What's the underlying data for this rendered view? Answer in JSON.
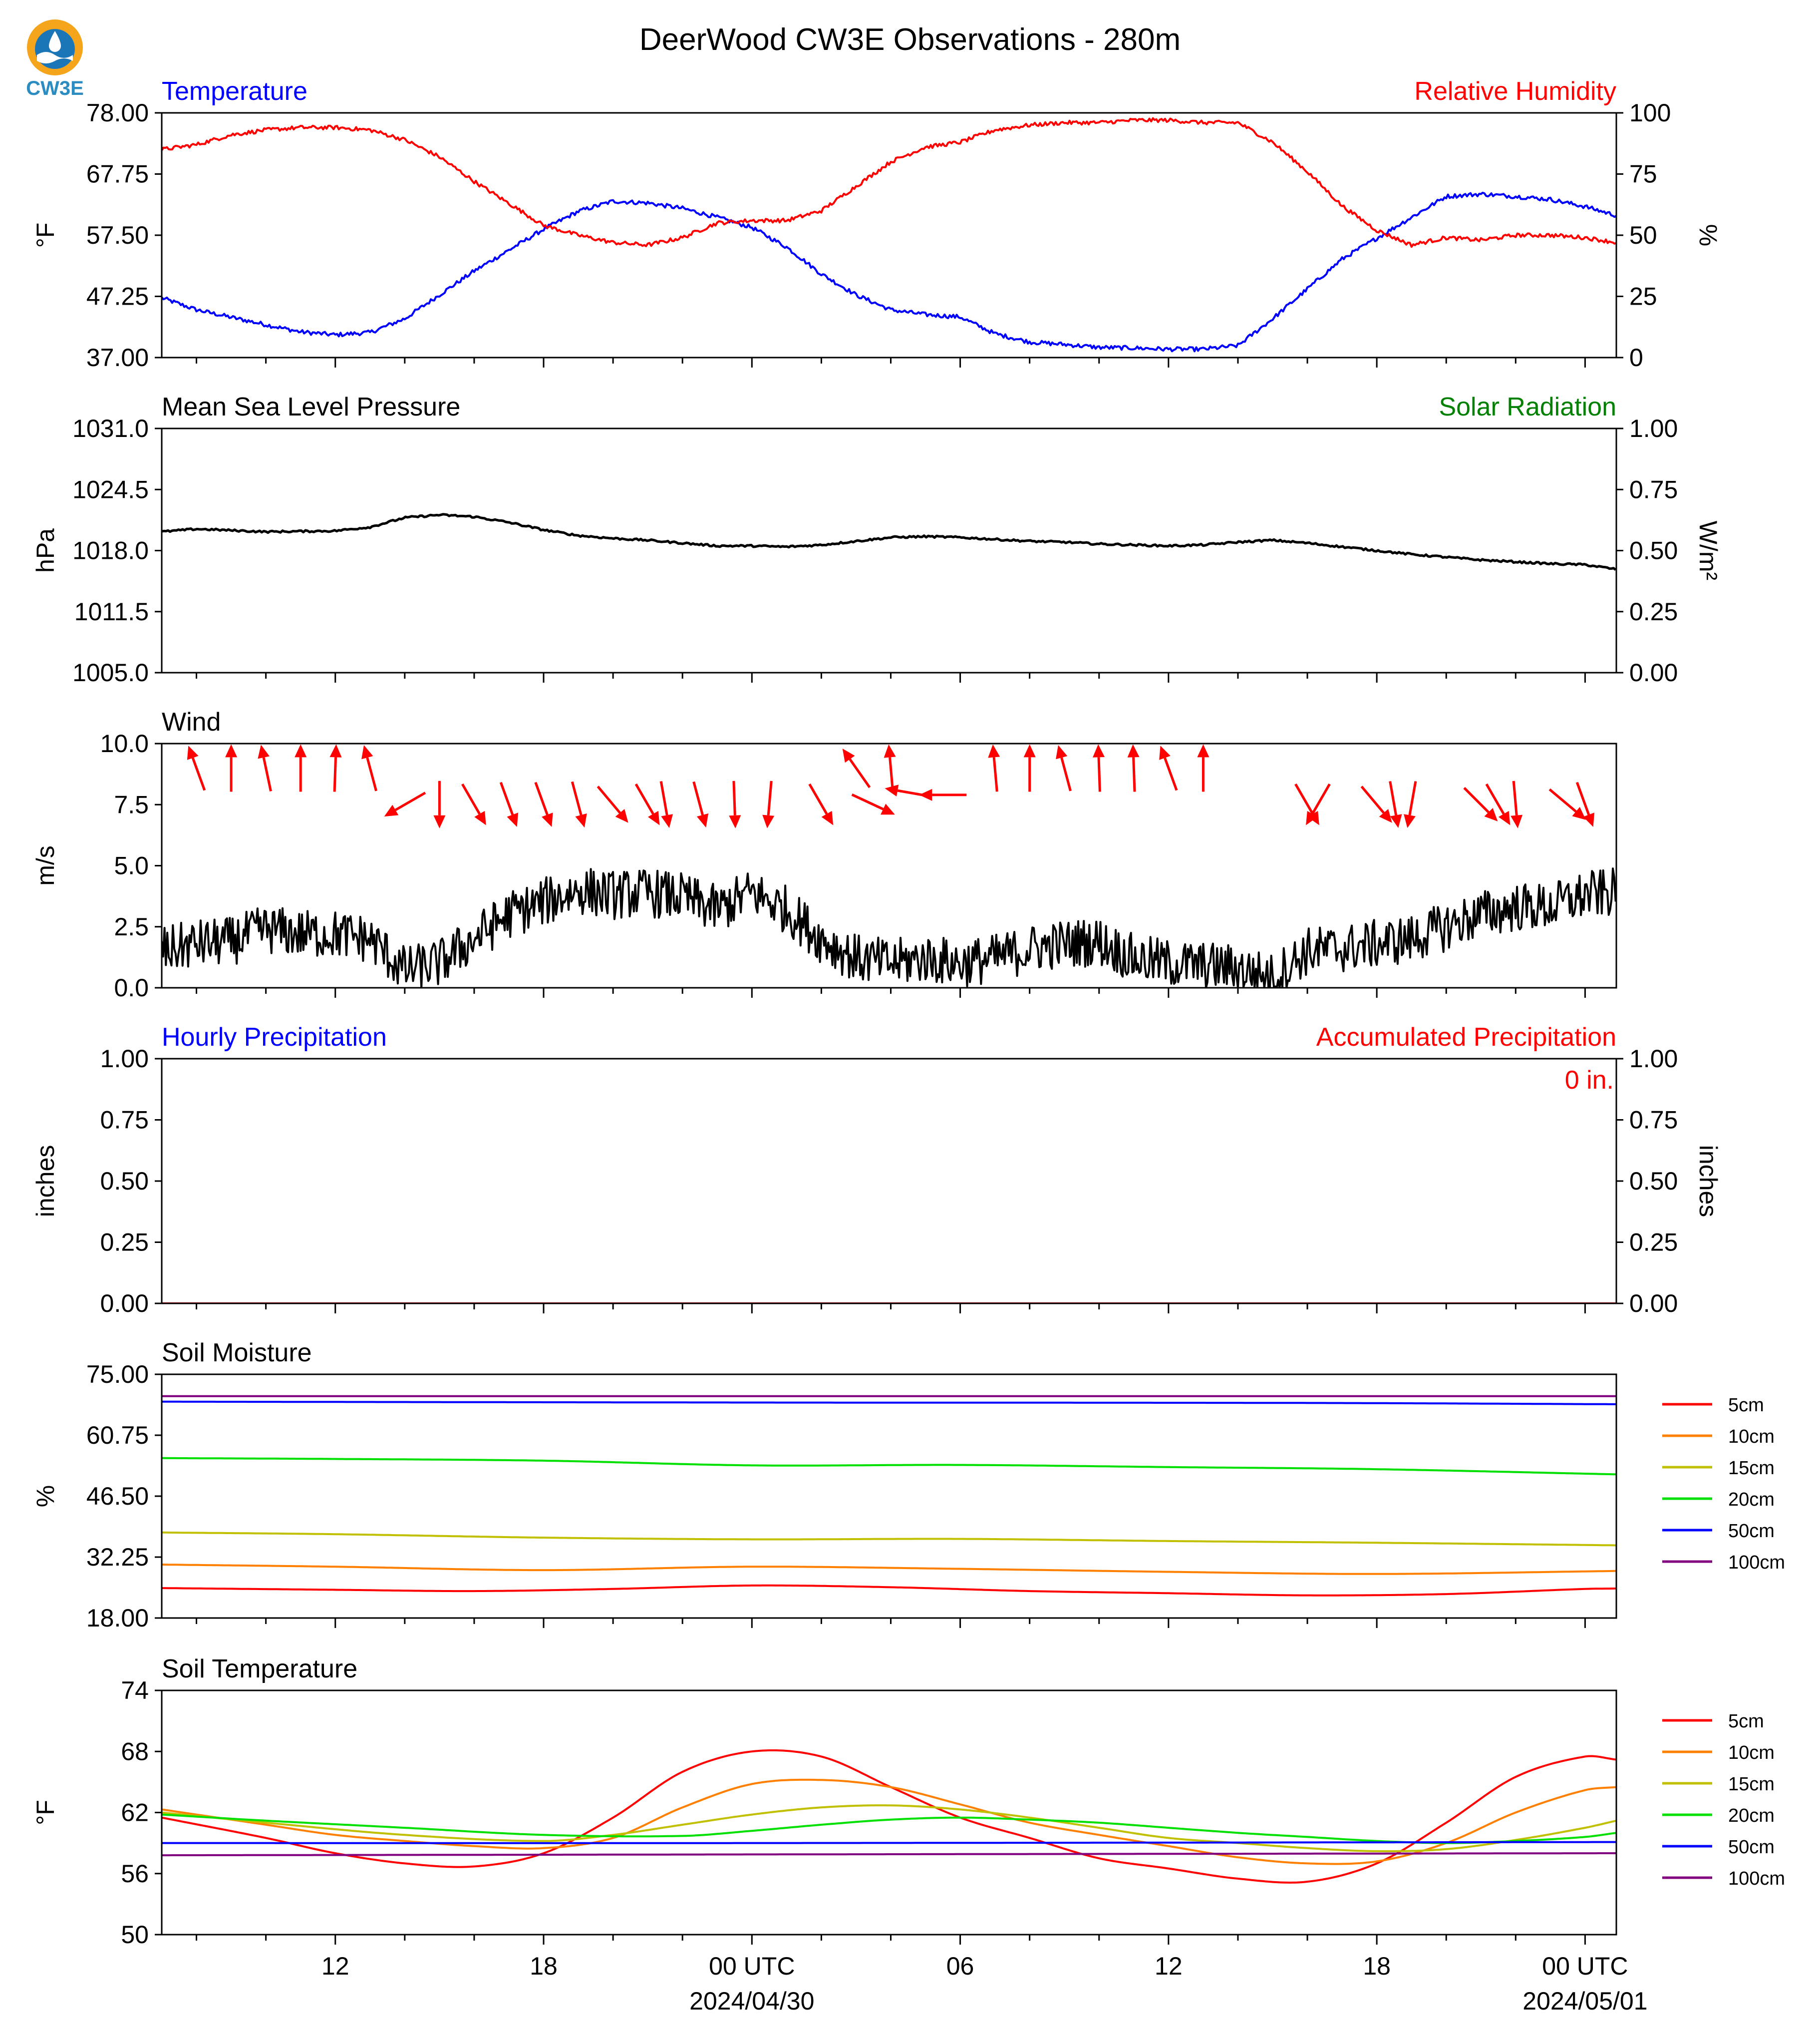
{
  "header": {
    "title": "DeerWood CW3E Observations - 280m",
    "logo_text": "CW3E"
  },
  "x_axis": {
    "tick_labels": [
      "12",
      "18",
      "00 UTC",
      "06",
      "12",
      "18",
      "00 UTC"
    ],
    "tick_hours": [
      12,
      18,
      24,
      30,
      36,
      42,
      48
    ],
    "date_labels": [
      {
        "text": "2024/04/30",
        "hour": 24
      },
      {
        "text": "2024/05/01",
        "hour": 48
      }
    ],
    "range_hours": [
      7,
      48.9
    ]
  },
  "colors": {
    "temperature": "#0000ff",
    "humidity": "#ff0000",
    "pressure": "#000000",
    "solar": "#008000",
    "wind": "#000000",
    "wind_barbs": "#ff0000",
    "hourly_precip": "#0000ff",
    "accum_precip": "#ff0000",
    "depths": {
      "5cm": "#ff0000",
      "10cm": "#ff8000",
      "15cm": "#c0c000",
      "20cm": "#00e000",
      "50cm": "#0000ff",
      "100cm": "#800080"
    }
  },
  "chart_data": [
    {
      "type": "line",
      "title_left": "Temperature",
      "title_right": "Relative Humidity",
      "ylabel": "°F",
      "ylabel_right": "%",
      "ylim": [
        37.0,
        78.0
      ],
      "ylim_right": [
        0,
        100
      ],
      "yticks": [
        "37.00",
        "47.25",
        "57.50",
        "67.75",
        "78.00"
      ],
      "yticks_right": [
        "0",
        "25",
        "50",
        "75",
        "100"
      ],
      "series": [
        {
          "name": "Temperature",
          "axis": "left",
          "x": [
            7,
            8,
            10,
            11,
            12,
            13,
            14,
            15,
            16,
            17,
            18,
            19,
            20,
            21,
            22,
            23,
            24,
            25,
            26,
            27,
            28,
            29,
            30,
            31,
            32,
            33,
            34,
            35,
            36,
            37,
            38,
            39,
            40,
            41,
            42,
            43,
            44,
            45,
            46,
            47,
            48,
            48.9
          ],
          "y": [
            47.0,
            45.0,
            42.5,
            41.3,
            40.8,
            41.2,
            43.5,
            47.5,
            51.5,
            55.0,
            58.5,
            61.5,
            63.2,
            62.9,
            62.0,
            60.5,
            58.8,
            55.5,
            51.0,
            47.5,
            45.0,
            44.2,
            43.8,
            41.0,
            39.6,
            39.2,
            38.7,
            38.6,
            38.4,
            38.4,
            39.0,
            43.5,
            48.5,
            53.5,
            57.0,
            60.5,
            64.0,
            64.4,
            64.0,
            63.5,
            62.3,
            60.8
          ]
        },
        {
          "name": "Relative Humidity",
          "axis": "right",
          "x": [
            7,
            8,
            9,
            10,
            11,
            12,
            13,
            14,
            15,
            16,
            17,
            18,
            19,
            20,
            21,
            22,
            23,
            24,
            25,
            26,
            27,
            28,
            29,
            30,
            31,
            32,
            33,
            34,
            35,
            36,
            37,
            38,
            39,
            40,
            41,
            42,
            43,
            44,
            45,
            46,
            47,
            48,
            48.9
          ],
          "y": [
            85,
            87,
            91,
            93,
            94,
            94,
            93,
            89,
            82,
            72,
            63,
            54,
            50,
            47,
            46,
            49,
            55,
            56,
            56,
            60,
            70,
            80,
            86,
            88,
            93,
            95,
            96,
            96,
            97,
            97,
            96,
            96,
            88,
            76,
            62,
            52,
            46,
            49,
            48,
            50,
            50,
            49,
            47
          ]
        }
      ]
    },
    {
      "type": "line",
      "title_left": "Mean Sea Level Pressure",
      "title_right": "Solar Radiation",
      "ylabel": "hPa",
      "ylabel_right": "W/m²",
      "ylim": [
        1005.0,
        1031.0
      ],
      "ylim_right": [
        0.0,
        1.0
      ],
      "yticks": [
        "1005.0",
        "1011.5",
        "1018.0",
        "1024.5",
        "1031.0"
      ],
      "yticks_right": [
        "0.00",
        "0.25",
        "0.50",
        "0.75",
        "1.00"
      ],
      "series": [
        {
          "name": "Mean Sea Level Pressure",
          "axis": "left",
          "x": [
            7,
            8,
            10,
            12,
            13,
            14,
            15,
            16,
            17,
            18,
            19,
            20,
            21,
            22,
            23,
            24,
            25,
            26,
            27,
            28,
            29,
            30,
            31,
            32,
            33,
            34,
            35,
            36,
            37,
            38,
            39,
            40,
            41,
            42,
            43,
            44,
            45,
            46,
            47,
            48,
            48.9
          ],
          "y": [
            1020.0,
            1020.3,
            1020.0,
            1020.1,
            1020.5,
            1021.5,
            1021.8,
            1021.6,
            1021.0,
            1020.2,
            1019.6,
            1019.3,
            1019.1,
            1018.8,
            1018.5,
            1018.5,
            1018.4,
            1018.6,
            1019.0,
            1019.4,
            1019.5,
            1019.4,
            1019.2,
            1019.0,
            1018.9,
            1018.7,
            1018.6,
            1018.5,
            1018.6,
            1018.9,
            1019.1,
            1018.8,
            1018.4,
            1018.0,
            1017.6,
            1017.3,
            1017.0,
            1016.8,
            1016.6,
            1016.5,
            1016.0
          ]
        }
      ]
    },
    {
      "type": "line",
      "title_left": "Wind",
      "ylabel": "m/s",
      "ylim": [
        0.0,
        10.0
      ],
      "yticks": [
        "0.0",
        "2.5",
        "5.0",
        "7.5",
        "10.0"
      ],
      "series": [
        {
          "name": "Wind speed",
          "axis": "left",
          "x": [
            7,
            8,
            9,
            10,
            11,
            12,
            13,
            14,
            15,
            16,
            17,
            18,
            19,
            20,
            21,
            22,
            23,
            24,
            25,
            26,
            27,
            28,
            29,
            30,
            31,
            32,
            33,
            34,
            35,
            36,
            37,
            38,
            39,
            40,
            41,
            42,
            43,
            44,
            45,
            46,
            47,
            48,
            48.9
          ],
          "y": [
            1.5,
            1.8,
            1.9,
            2.4,
            2.2,
            2.2,
            2.0,
            0.7,
            1.0,
            2.0,
            3.0,
            3.5,
            4.0,
            3.8,
            3.9,
            3.7,
            3.2,
            3.9,
            3.2,
            2.0,
            1.2,
            1.0,
            1.2,
            1.0,
            1.2,
            1.6,
            1.8,
            1.9,
            1.2,
            1.0,
            0.9,
            0.8,
            0.4,
            1.5,
            1.6,
            1.8,
            2.0,
            2.5,
            3.0,
            3.3,
            3.3,
            3.8,
            3.9
          ]
        }
      ],
      "barbs": [
        {
          "x": 8.0,
          "dir_deg": 160,
          "y": 9.0
        },
        {
          "x": 9.0,
          "dir_deg": 180,
          "y": 9.0
        },
        {
          "x": 10.0,
          "dir_deg": 168,
          "y": 9.0
        },
        {
          "x": 11.0,
          "dir_deg": 180,
          "y": 9.0
        },
        {
          "x": 12.0,
          "dir_deg": 182,
          "y": 9.0
        },
        {
          "x": 13.0,
          "dir_deg": 165,
          "y": 9.0
        },
        {
          "x": 14.0,
          "dir_deg": 60,
          "y": 7.5
        },
        {
          "x": 15.0,
          "dir_deg": 0,
          "y": 7.5
        },
        {
          "x": 16.0,
          "dir_deg": 330,
          "y": 7.5
        },
        {
          "x": 17.0,
          "dir_deg": 340,
          "y": 7.5
        },
        {
          "x": 18.0,
          "dir_deg": 340,
          "y": 7.5
        },
        {
          "x": 19.0,
          "dir_deg": 345,
          "y": 7.5
        },
        {
          "x": 20.0,
          "dir_deg": 320,
          "y": 7.5
        },
        {
          "x": 21.0,
          "dir_deg": 330,
          "y": 7.5
        },
        {
          "x": 21.5,
          "dir_deg": 350,
          "y": 7.5
        },
        {
          "x": 22.5,
          "dir_deg": 345,
          "y": 7.5
        },
        {
          "x": 23.5,
          "dir_deg": 358,
          "y": 7.5
        },
        {
          "x": 24.5,
          "dir_deg": 5,
          "y": 7.5
        },
        {
          "x": 26.0,
          "dir_deg": 330,
          "y": 7.5
        },
        {
          "x": 27.0,
          "dir_deg": 145,
          "y": 9.0
        },
        {
          "x": 27.5,
          "dir_deg": 295,
          "y": 7.5
        },
        {
          "x": 28.0,
          "dir_deg": 175,
          "y": 9.0
        },
        {
          "x": 28.5,
          "dir_deg": 100,
          "y": 8.0
        },
        {
          "x": 29.5,
          "dir_deg": 90,
          "y": 7.9
        },
        {
          "x": 31.0,
          "dir_deg": 175,
          "y": 9.0
        },
        {
          "x": 32.0,
          "dir_deg": 180,
          "y": 9.0
        },
        {
          "x": 33.0,
          "dir_deg": 165,
          "y": 9.0
        },
        {
          "x": 34.0,
          "dir_deg": 178,
          "y": 9.0
        },
        {
          "x": 35.0,
          "dir_deg": 178,
          "y": 9.0
        },
        {
          "x": 36.0,
          "dir_deg": 160,
          "y": 9.0
        },
        {
          "x": 37.0,
          "dir_deg": 180,
          "y": 9.0
        },
        {
          "x": 40.0,
          "dir_deg": 330,
          "y": 7.5
        },
        {
          "x": 40.3,
          "dir_deg": 30,
          "y": 7.5
        },
        {
          "x": 42.0,
          "dir_deg": 320,
          "y": 7.5
        },
        {
          "x": 42.5,
          "dir_deg": 350,
          "y": 7.5
        },
        {
          "x": 43.0,
          "dir_deg": 10,
          "y": 7.5
        },
        {
          "x": 45.0,
          "dir_deg": 315,
          "y": 7.5
        },
        {
          "x": 45.5,
          "dir_deg": 330,
          "y": 7.5
        },
        {
          "x": 46.0,
          "dir_deg": 355,
          "y": 7.5
        },
        {
          "x": 47.5,
          "dir_deg": 310,
          "y": 7.5
        },
        {
          "x": 48.0,
          "dir_deg": 340,
          "y": 7.5
        }
      ]
    },
    {
      "type": "line",
      "title_left": "Hourly Precipitation",
      "title_right": "Accumulated Precipitation",
      "annotation": "0 in.",
      "ylabel": "inches",
      "ylabel_right": "inches",
      "ylim": [
        0.0,
        1.0
      ],
      "ylim_right": [
        0.0,
        1.0
      ],
      "yticks": [
        "0.00",
        "0.25",
        "0.50",
        "0.75",
        "1.00"
      ],
      "yticks_right": [
        "0.00",
        "0.25",
        "0.50",
        "0.75",
        "1.00"
      ],
      "series": [
        {
          "name": "Hourly Precipitation",
          "axis": "left",
          "x": [
            7,
            48.9
          ],
          "y": [
            0,
            0
          ]
        },
        {
          "name": "Accumulated Precipitation",
          "axis": "right",
          "x": [
            7,
            48.9
          ],
          "y": [
            0,
            0
          ]
        }
      ]
    },
    {
      "type": "line",
      "title_left": "Soil Moisture",
      "ylabel": "%",
      "ylim": [
        18.0,
        75.0
      ],
      "yticks": [
        "18.00",
        "32.25",
        "46.50",
        "60.75",
        "75.00"
      ],
      "legend": [
        "5cm",
        "10cm",
        "15cm",
        "20cm",
        "50cm",
        "100cm"
      ],
      "series": [
        {
          "name": "5cm",
          "x": [
            7,
            12,
            16,
            20,
            24,
            28,
            32,
            36,
            40,
            44,
            48,
            48.9
          ],
          "y": [
            25.0,
            24.6,
            24.3,
            24.8,
            25.6,
            25.2,
            24.3,
            23.8,
            23.3,
            23.6,
            24.8,
            24.9
          ]
        },
        {
          "name": "10cm",
          "x": [
            7,
            12,
            18,
            24,
            30,
            36,
            42,
            48.9
          ],
          "y": [
            30.5,
            30.0,
            29.2,
            30.0,
            29.5,
            28.8,
            28.3,
            29.0
          ]
        },
        {
          "name": "15cm",
          "x": [
            7,
            12,
            18,
            24,
            30,
            36,
            42,
            48.9
          ],
          "y": [
            38.0,
            37.6,
            36.8,
            36.4,
            36.5,
            36.0,
            35.6,
            35.0
          ]
        },
        {
          "name": "20cm",
          "x": [
            7,
            12,
            18,
            24,
            30,
            36,
            42,
            48.9
          ],
          "y": [
            55.4,
            55.2,
            54.8,
            53.7,
            53.8,
            53.3,
            52.8,
            51.6
          ]
        },
        {
          "name": "50cm",
          "x": [
            7,
            24,
            40,
            48.9
          ],
          "y": [
            68.6,
            68.4,
            68.3,
            68.0
          ]
        },
        {
          "name": "100cm",
          "x": [
            7,
            48.9
          ],
          "y": [
            69.9,
            69.9
          ]
        }
      ]
    },
    {
      "type": "line",
      "title_left": "Soil Temperature",
      "ylabel": "°F",
      "ylim": [
        50,
        74
      ],
      "yticks": [
        "50",
        "56",
        "62",
        "68",
        "74"
      ],
      "legend": [
        "5cm",
        "10cm",
        "15cm",
        "20cm",
        "50cm",
        "100cm"
      ],
      "series": [
        {
          "name": "5cm",
          "x": [
            7,
            10,
            12,
            14,
            16,
            18,
            20,
            22,
            24,
            26,
            28,
            30,
            32,
            34,
            36,
            38,
            40,
            42,
            44,
            46,
            48,
            48.9
          ],
          "y": [
            61.5,
            59.5,
            58.0,
            57.0,
            56.7,
            58.0,
            61.5,
            66.0,
            68.0,
            67.5,
            64.5,
            61.5,
            59.5,
            57.5,
            56.5,
            55.5,
            55.2,
            57.0,
            61.0,
            65.5,
            67.5,
            67.2
          ]
        },
        {
          "name": "10cm",
          "x": [
            7,
            10,
            12,
            14,
            16,
            18,
            20,
            22,
            24,
            26,
            28,
            30,
            32,
            34,
            36,
            38,
            40,
            42,
            44,
            46,
            48,
            48.9
          ],
          "y": [
            62.3,
            60.8,
            59.8,
            59.2,
            58.7,
            58.5,
            59.5,
            62.5,
            64.8,
            65.2,
            64.5,
            62.8,
            61.0,
            59.8,
            58.7,
            57.6,
            57.0,
            57.2,
            59.0,
            62.0,
            64.2,
            64.5
          ]
        },
        {
          "name": "15cm",
          "x": [
            7,
            10,
            14,
            18,
            20,
            22,
            24,
            26,
            28,
            30,
            32,
            34,
            36,
            38,
            40,
            42,
            44,
            46,
            48,
            48.9
          ],
          "y": [
            62.0,
            61.0,
            59.8,
            59.2,
            59.8,
            60.8,
            61.8,
            62.5,
            62.7,
            62.3,
            61.5,
            60.5,
            59.5,
            59.0,
            58.5,
            58.2,
            58.4,
            59.3,
            60.5,
            61.2
          ]
        },
        {
          "name": "20cm",
          "x": [
            7,
            10,
            14,
            18,
            22,
            24,
            26,
            28,
            30,
            32,
            34,
            36,
            38,
            40,
            42,
            44,
            46,
            48,
            48.9
          ],
          "y": [
            61.8,
            61.2,
            60.5,
            59.8,
            59.7,
            60.2,
            60.8,
            61.3,
            61.5,
            61.3,
            61.0,
            60.5,
            60.0,
            59.6,
            59.2,
            59.0,
            59.2,
            59.6,
            60.0
          ]
        },
        {
          "name": "50cm",
          "x": [
            7,
            24,
            48.9
          ],
          "y": [
            59.0,
            59.0,
            59.1
          ]
        },
        {
          "name": "100cm",
          "x": [
            7,
            48.9
          ],
          "y": [
            57.8,
            58.0
          ]
        }
      ]
    }
  ]
}
